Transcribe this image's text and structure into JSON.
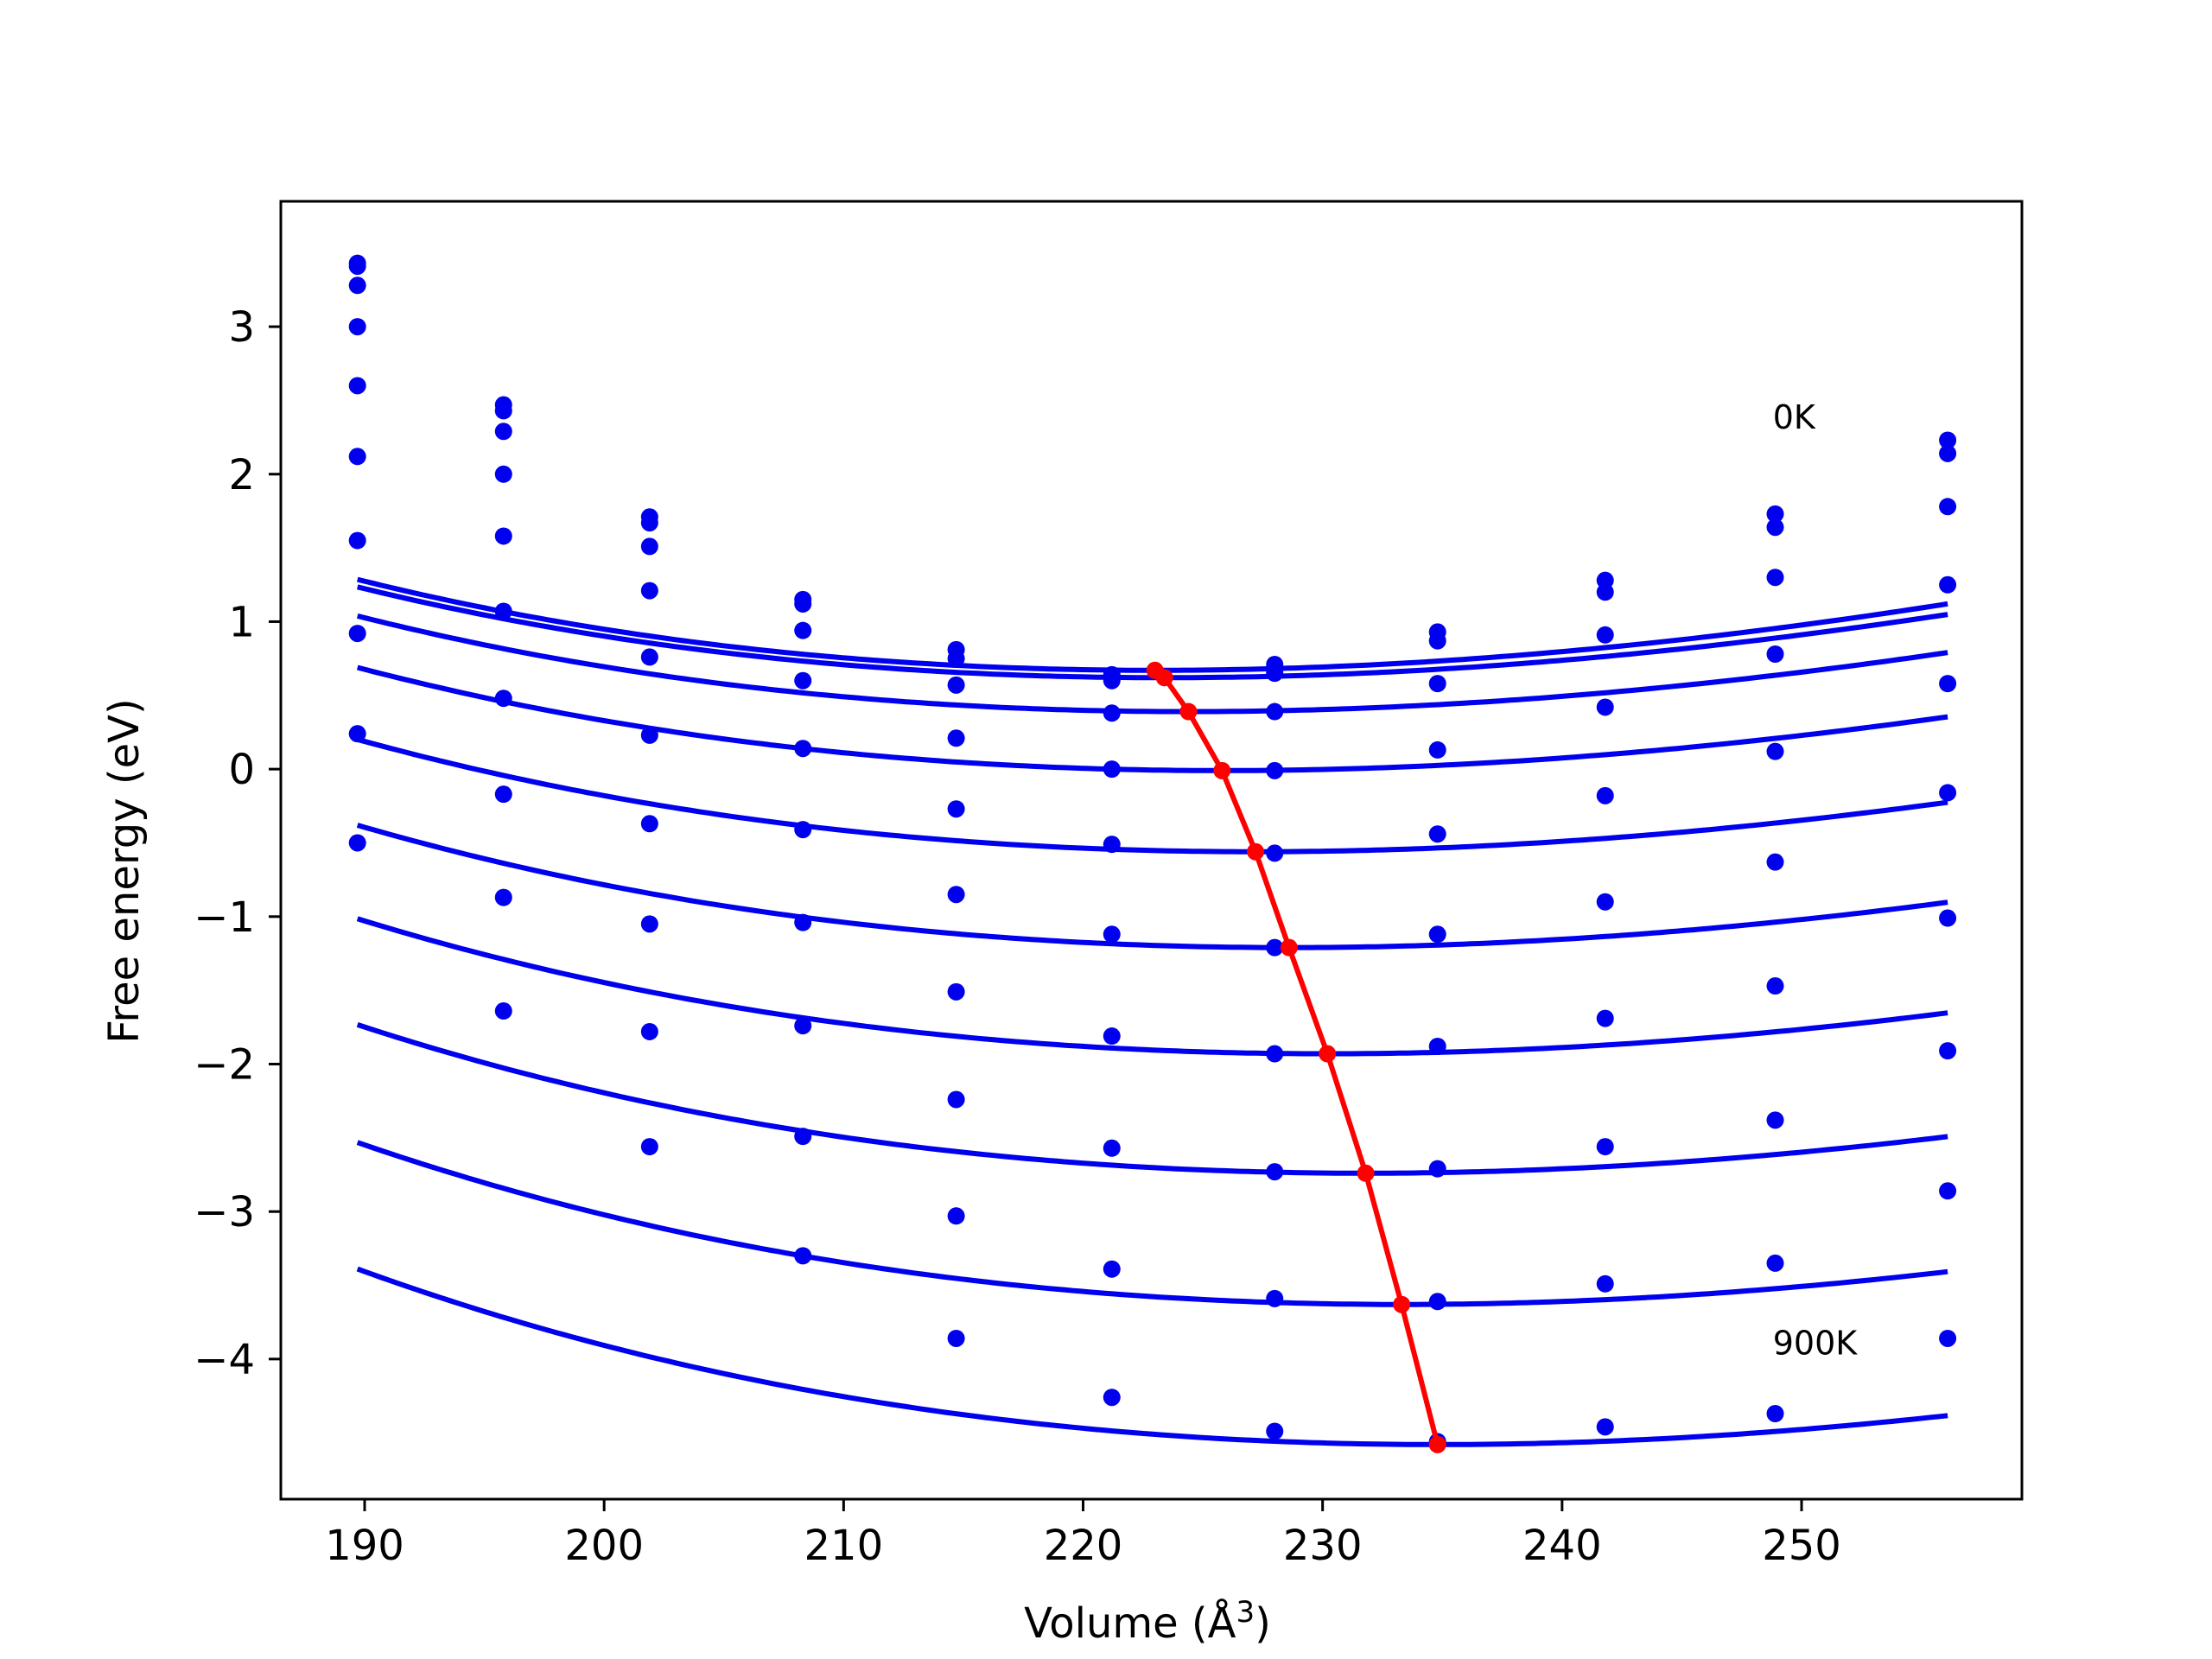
{
  "chart_data": {
    "type": "line",
    "title": "",
    "xlabel": "Volume (Å",
    "xlabel_sup": "3",
    "xlabel_close": ")",
    "ylabel": "Free energy (eV)",
    "xlim": [
      186.5,
      259.2
    ],
    "ylim": [
      -4.95,
      3.85
    ],
    "xticks": [
      190,
      200,
      210,
      220,
      230,
      240,
      250
    ],
    "yticks": [
      -4,
      -3,
      -2,
      -1,
      0,
      1,
      2,
      3
    ],
    "grid": false,
    "colors": {
      "fit": "#0000ee",
      "points": "#0000ee",
      "minima": "#ff0000",
      "axes": "#000000"
    },
    "x": [
      189.7,
      195.8,
      201.9,
      208.3,
      214.7,
      221.2,
      228.0,
      234.8,
      241.8,
      248.9,
      256.1
    ],
    "series": [
      {
        "values": [
          3.43,
          2.47,
          1.71,
          1.15,
          0.81,
          0.64,
          0.71,
          0.93,
          1.28,
          1.73,
          2.23
        ],
        "fit": [
          0.0004725,
          223.0,
          0.67
        ]
      },
      {
        "values": [
          3.41,
          2.43,
          1.67,
          1.12,
          0.75,
          0.6,
          0.65,
          0.87,
          1.2,
          1.64,
          2.14
        ],
        "fit": [
          0.00046,
          223.4,
          0.62
        ]
      },
      {
        "values": [
          3.28,
          2.29,
          1.51,
          0.94,
          0.57,
          0.38,
          0.39,
          0.58,
          0.91,
          1.3,
          1.78
        ],
        "fit": [
          0.000455,
          224.4,
          0.39
        ]
      },
      {
        "values": [
          3.0,
          2.0,
          1.21,
          0.6,
          0.21,
          0.0,
          -0.01,
          0.13,
          0.42,
          0.78,
          1.25
        ],
        "fit": [
          0.0004507,
          225.8,
          -0.01
        ]
      },
      {
        "values": [
          2.6,
          1.58,
          0.76,
          0.14,
          -0.27,
          -0.51,
          -0.57,
          -0.44,
          -0.18,
          0.12,
          0.58
        ],
        "fit": [
          0.000452,
          227.2,
          -0.56
        ]
      },
      {
        "values": [
          2.12,
          1.07,
          0.23,
          -0.41,
          -0.85,
          -1.12,
          -1.21,
          -1.12,
          -0.9,
          -0.63,
          -0.16
        ],
        "fit": [
          0.000455,
          228.6,
          -1.21
        ]
      },
      {
        "values": [
          1.55,
          0.48,
          -0.37,
          -1.04,
          -1.51,
          -1.81,
          -1.93,
          -1.88,
          -1.69,
          -1.47,
          -1.01
        ],
        "fit": [
          0.00046,
          230.2,
          -1.93
        ]
      },
      {
        "values": [
          0.92,
          -0.17,
          -1.05,
          -1.74,
          -2.24,
          -2.57,
          -2.73,
          -2.71,
          -2.56,
          -2.38,
          -1.91
        ],
        "fit": [
          0.000465,
          231.8,
          -2.74
        ]
      },
      {
        "values": [
          0.24,
          -0.87,
          -1.78,
          -2.49,
          -3.03,
          -3.39,
          -3.59,
          -3.61,
          -3.49,
          -3.35,
          -2.86
        ],
        "fit": [
          0.00047,
          233.3,
          -3.63
        ]
      },
      {
        "values": [
          -0.5,
          -1.64,
          -2.56,
          -3.3,
          -3.86,
          -4.26,
          -4.49,
          -4.56,
          -4.46,
          -4.37,
          -3.86
        ],
        "fit": [
          0.000473,
          234.8,
          -4.58
        ]
      }
    ],
    "minima": {
      "x": [
        223.0,
        223.4,
        224.4,
        225.8,
        227.2,
        228.6,
        230.2,
        231.8,
        233.3,
        234.8
      ],
      "y": [
        0.67,
        0.62,
        0.39,
        -0.01,
        -0.56,
        -1.21,
        -1.93,
        -2.74,
        -3.63,
        -4.58
      ]
    },
    "annotations": [
      {
        "text": "0K",
        "x": 248.8,
        "y": 2.31
      },
      {
        "text": "900K",
        "x": 248.8,
        "y": -3.97
      }
    ]
  }
}
